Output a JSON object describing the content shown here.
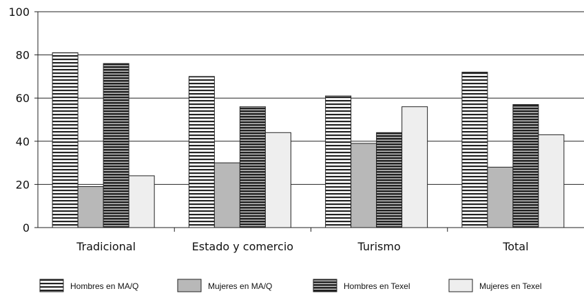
{
  "chart_data": {
    "type": "bar",
    "title": "",
    "xlabel": "",
    "ylabel": "",
    "ylim": [
      0,
      100
    ],
    "yticks": [
      0,
      20,
      40,
      60,
      80,
      100
    ],
    "grid": true,
    "legend_position": "bottom",
    "categories": [
      "Tradicional",
      "Estado y comercio",
      "Turismo",
      "Total"
    ],
    "series": [
      {
        "name": "Hombres en MA/Q",
        "values": [
          81,
          70,
          61,
          72
        ],
        "pattern": "striped-light",
        "color": "#ffffff"
      },
      {
        "name": "Mujeres en MA/Q",
        "values": [
          19,
          30,
          39,
          28
        ],
        "pattern": "solid",
        "color": "#b8b8b8"
      },
      {
        "name": "Hombres en Texel",
        "values": [
          76,
          56,
          44,
          57
        ],
        "pattern": "striped-dark",
        "color": "#555555"
      },
      {
        "name": "Mujeres en Texel",
        "values": [
          24,
          44,
          56,
          43
        ],
        "pattern": "solid",
        "color": "#eeeeee"
      }
    ]
  }
}
